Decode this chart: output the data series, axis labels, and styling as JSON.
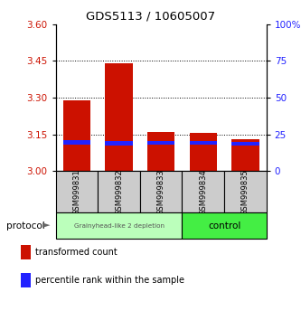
{
  "title": "GDS5113 / 10605007",
  "samples": [
    "GSM999831",
    "GSM999832",
    "GSM999833",
    "GSM999834",
    "GSM999835"
  ],
  "red_tops": [
    3.29,
    3.44,
    3.16,
    3.155,
    3.13
  ],
  "blue_tops": [
    3.125,
    3.122,
    3.122,
    3.122,
    3.118
  ],
  "blue_bottoms": [
    3.108,
    3.106,
    3.107,
    3.107,
    3.103
  ],
  "bar_base": 3.0,
  "ylim_left": [
    3.0,
    3.6
  ],
  "ylim_right": [
    0,
    100
  ],
  "yticks_left": [
    3.0,
    3.15,
    3.3,
    3.45,
    3.6
  ],
  "yticks_right": [
    0,
    25,
    50,
    75,
    100
  ],
  "ytick_labels_right": [
    "0",
    "25",
    "50",
    "75",
    "100%"
  ],
  "red_color": "#cc1100",
  "blue_color": "#2222ff",
  "grid_lines": [
    3.15,
    3.3,
    3.45
  ],
  "group1_label": "Grainyhead-like 2 depletion",
  "group2_label": "control",
  "group1_color": "#bbffbb",
  "group2_color": "#44ee44",
  "protocol_label": "protocol",
  "legend_red_label": "transformed count",
  "legend_blue_label": "percentile rank within the sample",
  "xticklabel_bg": "#cccccc",
  "bar_width": 0.65,
  "title_fontsize": 9.5,
  "tick_fontsize": 7.5,
  "label_fontsize": 7.5
}
